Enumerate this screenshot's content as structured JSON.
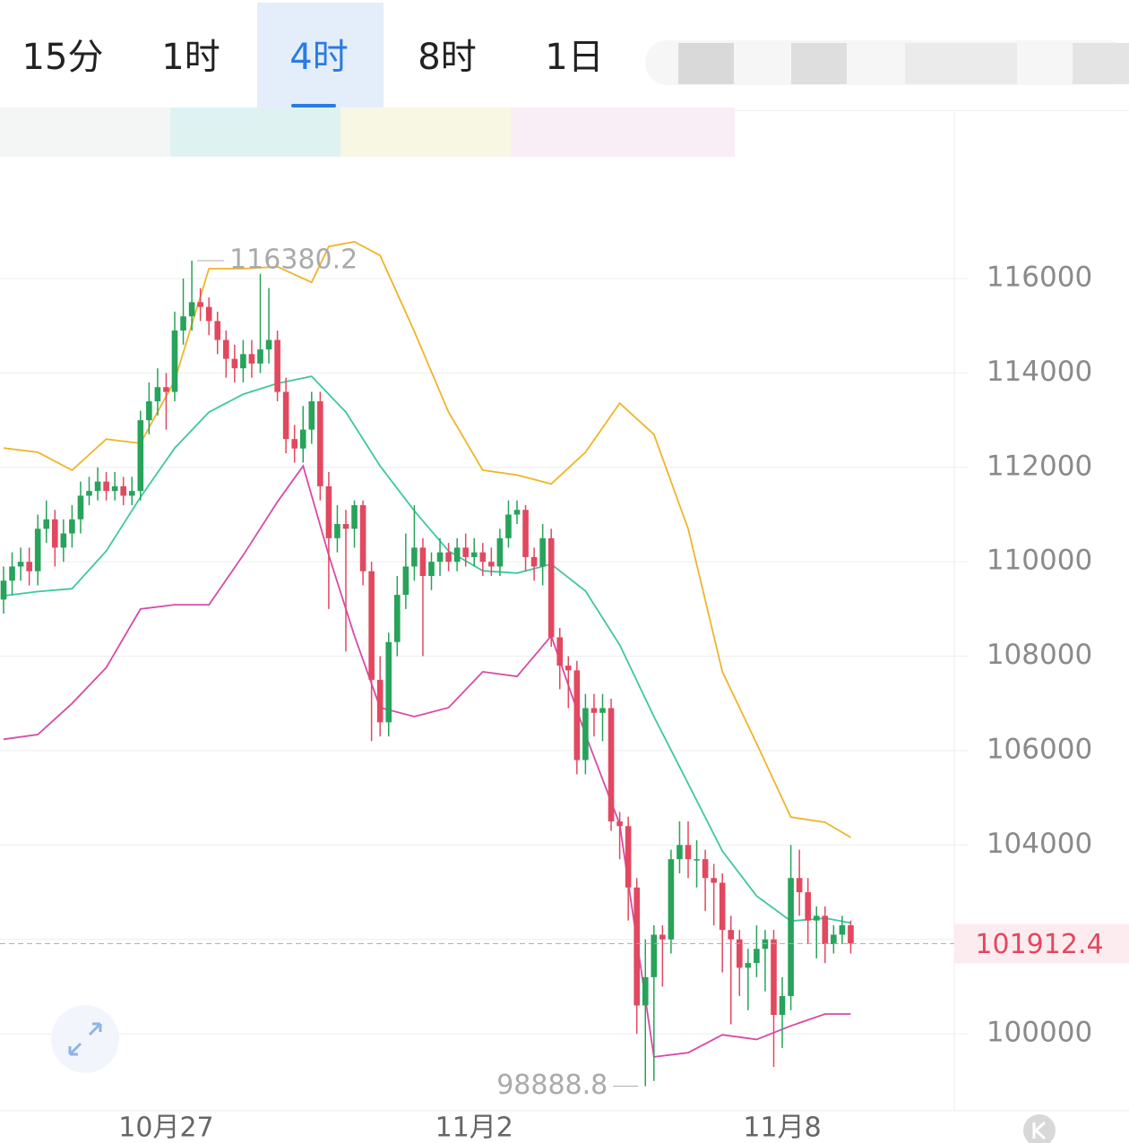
{
  "tabs": {
    "items": [
      "15分",
      "1时",
      "4时",
      "8时",
      "1日"
    ],
    "active": 2
  },
  "chart_data": {
    "type": "candlestick",
    "candles": {
      "open": [
        109200,
        109600,
        109900,
        110000,
        109800,
        110700,
        110900,
        110300,
        110600,
        110900,
        111400,
        111500,
        111700,
        111500,
        111600,
        111400,
        111500,
        113000,
        113400,
        113700,
        113600,
        114900,
        115200,
        115500,
        115400,
        115100,
        114700,
        114300,
        114100,
        114400,
        114200,
        114500,
        114700,
        113600,
        112600,
        112400,
        112800,
        113400,
        111600,
        110500,
        110800,
        110700,
        111200,
        109800,
        107500,
        106600,
        108300,
        109300,
        109900,
        110300,
        109700,
        110000,
        110200,
        110000,
        110300,
        110100,
        110200,
        110000,
        109900,
        110500,
        111000,
        111100,
        110100,
        109900,
        110500,
        108400,
        107800,
        107700,
        105800,
        106900,
        106800,
        106900,
        104500,
        104400,
        103100,
        100600,
        101200,
        102100,
        102000,
        103700,
        104000,
        103700,
        103700,
        103300,
        103200,
        102200,
        102000,
        101400,
        101500,
        101800,
        102000,
        100400,
        100800,
        103300,
        103000,
        102400,
        102500,
        101900,
        102100,
        102300
      ],
      "high": [
        109900,
        110200,
        110300,
        110300,
        111000,
        111300,
        111100,
        110900,
        111200,
        111700,
        111800,
        112000,
        111900,
        111900,
        111800,
        111800,
        113200,
        113800,
        114100,
        114000,
        115300,
        116000,
        116380.2,
        115800,
        115600,
        115300,
        114900,
        114600,
        114700,
        114700,
        116100,
        115800,
        114900,
        113900,
        112900,
        113300,
        113600,
        113600,
        111900,
        111200,
        111100,
        111300,
        111300,
        110000,
        108000,
        108500,
        109700,
        110600,
        111200,
        110500,
        110200,
        110500,
        110400,
        110500,
        110600,
        110500,
        110400,
        110300,
        110700,
        111300,
        111300,
        111200,
        110300,
        110800,
        110700,
        108600,
        108000,
        107900,
        107200,
        107200,
        107200,
        107100,
        104700,
        104600,
        103300,
        102000,
        102300,
        102300,
        103900,
        104500,
        104500,
        104100,
        103900,
        103600,
        103400,
        102500,
        102200,
        101800,
        102300,
        102200,
        102200,
        101200,
        104000,
        103900,
        103300,
        102700,
        102700,
        102300,
        102500,
        102400
      ],
      "low": [
        108900,
        109300,
        109600,
        109500,
        109500,
        110400,
        109900,
        110000,
        110300,
        110600,
        111200,
        111300,
        111300,
        111300,
        111200,
        111200,
        111300,
        112700,
        113100,
        112800,
        113400,
        114600,
        114900,
        115100,
        114800,
        114400,
        113900,
        113800,
        113800,
        113900,
        114000,
        114200,
        113400,
        112300,
        112100,
        112100,
        112500,
        111300,
        109000,
        110200,
        108100,
        110300,
        109500,
        106200,
        106300,
        106300,
        108000,
        109000,
        109600,
        108000,
        109400,
        109700,
        109800,
        109800,
        109900,
        109900,
        109700,
        109700,
        109700,
        110300,
        110800,
        109800,
        109600,
        109500,
        108200,
        107300,
        106900,
        105500,
        105500,
        106300,
        106200,
        104300,
        103700,
        102400,
        100000,
        98888.8,
        99000,
        101000,
        101700,
        103400,
        103300,
        103100,
        102600,
        102300,
        101300,
        100200,
        100800,
        100500,
        101200,
        100900,
        99300,
        99700,
        100500,
        102500,
        101900,
        101600,
        101500,
        101700,
        101900,
        101700
      ],
      "close": [
        109600,
        109900,
        110000,
        109800,
        110700,
        110900,
        110300,
        110600,
        110900,
        111400,
        111500,
        111700,
        111500,
        111600,
        111400,
        111500,
        113000,
        113400,
        113700,
        113600,
        114900,
        115200,
        115500,
        115400,
        115100,
        114700,
        114300,
        114100,
        114400,
        114200,
        114500,
        114700,
        113600,
        112600,
        112400,
        112800,
        113400,
        111600,
        110500,
        110800,
        110700,
        111200,
        109800,
        107500,
        106600,
        108300,
        109300,
        109900,
        110300,
        109700,
        110000,
        110200,
        110000,
        110300,
        110100,
        110200,
        110000,
        109900,
        110500,
        111000,
        111100,
        110100,
        109900,
        110500,
        108400,
        107800,
        107700,
        105800,
        106900,
        106800,
        106900,
        104500,
        104400,
        103100,
        100600,
        101200,
        102100,
        102000,
        103700,
        104000,
        103700,
        103700,
        103300,
        103200,
        102200,
        102000,
        101400,
        101500,
        101800,
        102000,
        100400,
        100800,
        103300,
        103000,
        102400,
        102500,
        101900,
        102100,
        102300,
        101912.4
      ]
    },
    "up_color": "#27a35a",
    "down_color": "#e2485f",
    "series": [
      {
        "color": "#f0b429",
        "x": [
          0,
          4,
          8,
          12,
          16,
          20,
          24,
          28,
          32,
          36,
          38,
          41,
          44,
          48,
          52,
          56,
          60,
          64,
          68,
          72,
          76,
          80,
          84,
          88,
          92,
          96,
          99
        ],
        "values": [
          112410,
          112320,
          111940,
          112600,
          112510,
          113840,
          116210,
          116210,
          116250,
          115920,
          116680,
          116780,
          116490,
          114880,
          113170,
          111940,
          111840,
          111650,
          112320,
          113360,
          112700,
          110700,
          107670,
          106150,
          104590,
          104480,
          104160
        ]
      },
      {
        "color": "#3cc8a0",
        "x": [
          0,
          4,
          8,
          12,
          16,
          20,
          24,
          28,
          32,
          36,
          40,
          44,
          48,
          52,
          56,
          60,
          64,
          68,
          72,
          76,
          80,
          84,
          88,
          92,
          96,
          99
        ],
        "values": [
          109280,
          109370,
          109430,
          110230,
          111370,
          112410,
          113170,
          113550,
          113780,
          113930,
          113170,
          112030,
          111080,
          110230,
          109810,
          109760,
          109950,
          109380,
          108240,
          106720,
          105300,
          103870,
          102920,
          102390,
          102450,
          102350
        ]
      },
      {
        "color": "#d84aa8",
        "x": [
          0,
          4,
          8,
          12,
          16,
          20,
          24,
          28,
          32,
          35,
          38,
          41,
          44,
          48,
          52,
          56,
          60,
          64,
          68,
          72,
          76,
          80,
          84,
          88,
          92,
          96,
          99
        ],
        "values": [
          106240,
          106340,
          107000,
          107760,
          109000,
          109090,
          109090,
          110140,
          111270,
          112030,
          110140,
          108430,
          106910,
          106720,
          106910,
          107670,
          107570,
          108430,
          106340,
          104440,
          99510,
          99600,
          99980,
          99880,
          100170,
          100420,
          100420
        ]
      }
    ],
    "ylim": [
      98370,
      119530
    ],
    "yticks": [
      100000,
      102000,
      104000,
      106000,
      108000,
      110000,
      112000,
      114000,
      116000
    ],
    "xticks": [
      {
        "value": 19,
        "label": "10月27"
      },
      {
        "value": 55,
        "label": "11月2"
      },
      {
        "value": 91,
        "label": "11月8"
      }
    ],
    "grid": true
  }
}
